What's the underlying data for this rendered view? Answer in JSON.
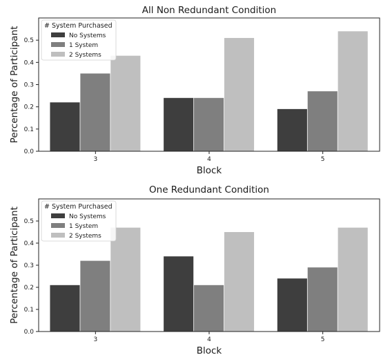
{
  "chart_data": [
    {
      "type": "bar",
      "title": "All Non Redundant Condition",
      "xlabel": "Block",
      "ylabel": "Percentage of Participant",
      "categories": [
        "3",
        "4",
        "5"
      ],
      "ylim": [
        0,
        0.6
      ],
      "yticks": [
        "0.0",
        "0.1",
        "0.2",
        "0.3",
        "0.4",
        "0.5"
      ],
      "legend": {
        "title": "# System Purchased",
        "placement": "top-left"
      },
      "grid": false,
      "series": [
        {
          "name": "No Systems",
          "color": "#3e3e3e",
          "values": [
            0.22,
            0.24,
            0.19
          ]
        },
        {
          "name": "1 System",
          "color": "#7f7f7f",
          "values": [
            0.35,
            0.24,
            0.27
          ]
        },
        {
          "name": "2 Systems",
          "color": "#bfbfbf",
          "values": [
            0.43,
            0.51,
            0.54
          ]
        }
      ]
    },
    {
      "type": "bar",
      "title": "One Redundant Condition",
      "xlabel": "Block",
      "ylabel": "Percentage of Participant",
      "categories": [
        "3",
        "4",
        "5"
      ],
      "ylim": [
        0,
        0.6
      ],
      "yticks": [
        "0.0",
        "0.1",
        "0.2",
        "0.3",
        "0.4",
        "0.5"
      ],
      "legend": {
        "title": "# System Purchased",
        "placement": "top-left"
      },
      "grid": false,
      "series": [
        {
          "name": "No Systems",
          "color": "#3e3e3e",
          "values": [
            0.21,
            0.34,
            0.24
          ]
        },
        {
          "name": "1 System",
          "color": "#7f7f7f",
          "values": [
            0.32,
            0.21,
            0.29
          ]
        },
        {
          "name": "2 Systems",
          "color": "#bfbfbf",
          "values": [
            0.47,
            0.45,
            0.47
          ]
        }
      ]
    }
  ]
}
